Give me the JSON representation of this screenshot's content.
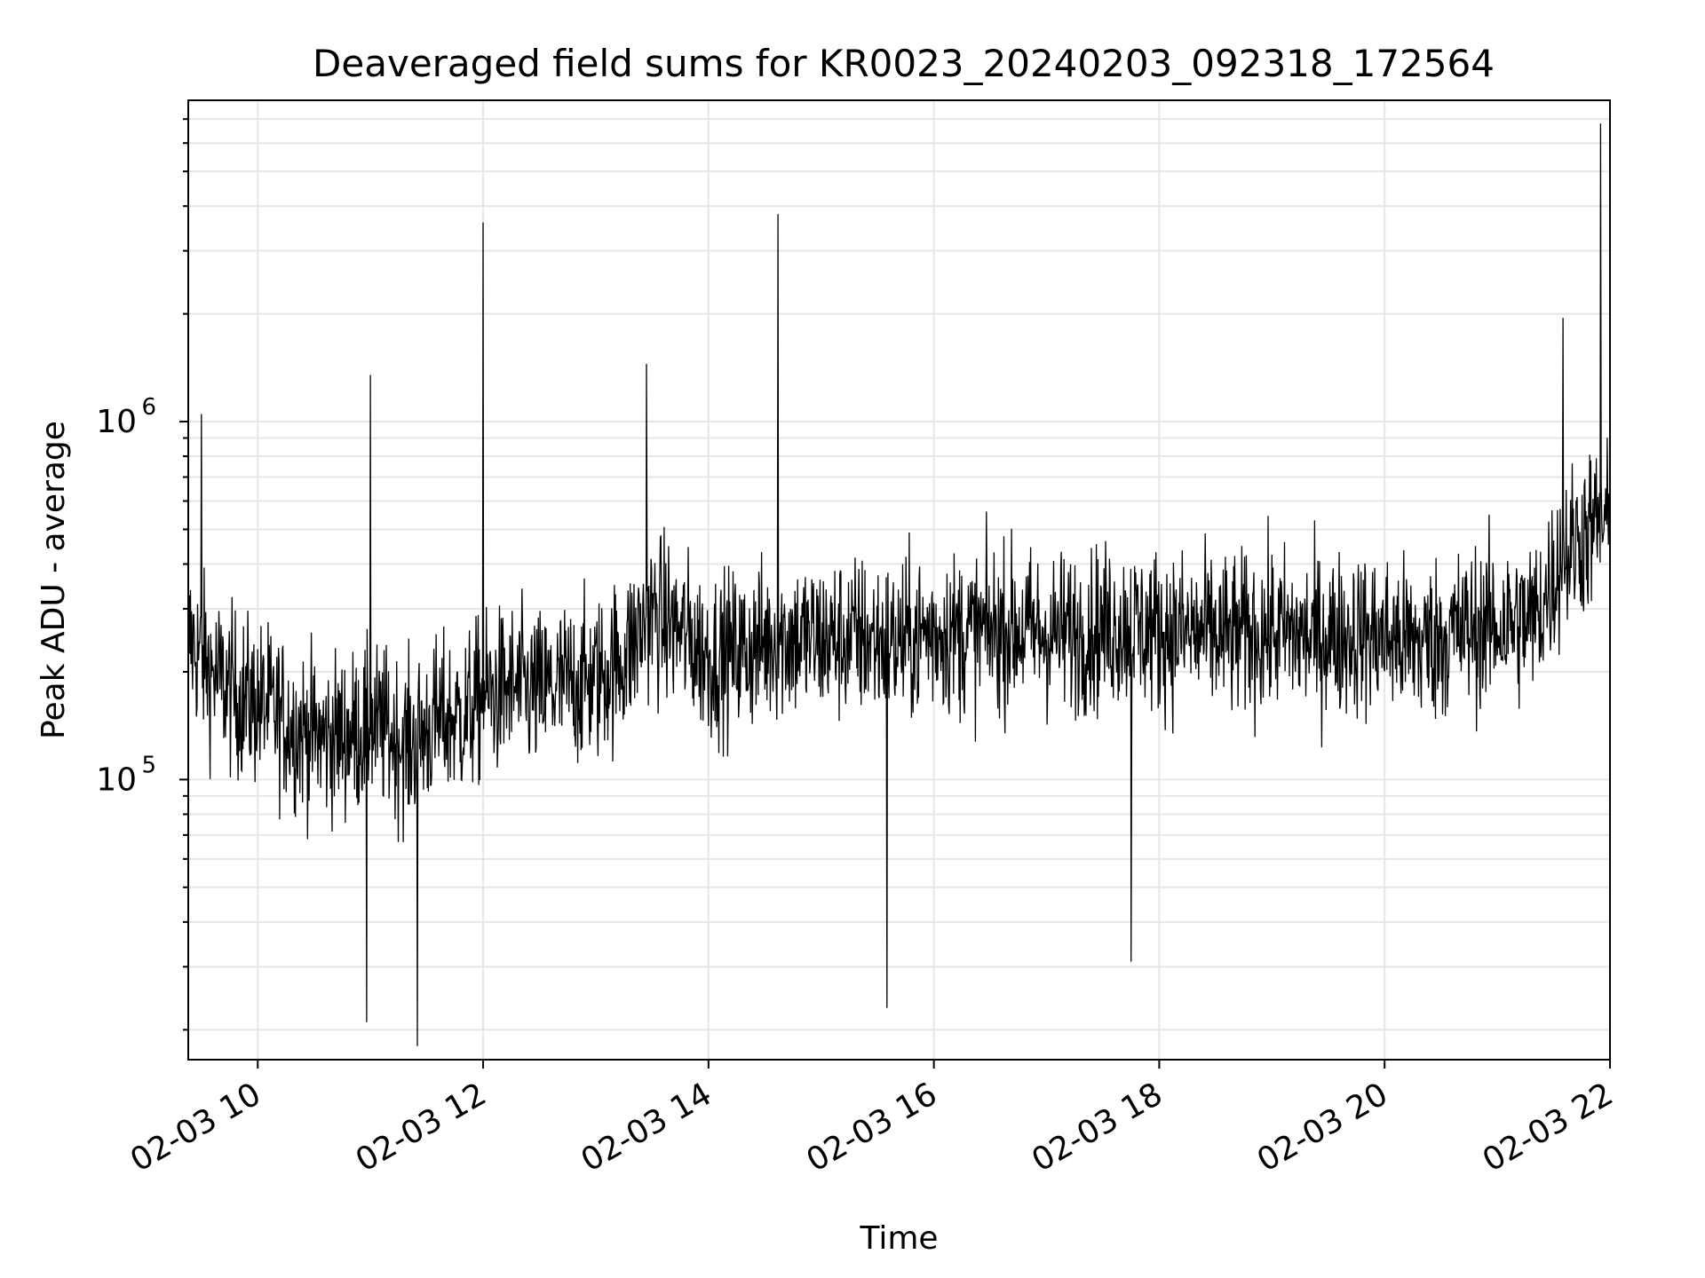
{
  "chart_data": {
    "type": "line",
    "title": "Deaveraged field sums for KR0023_20240203_092318_172564",
    "xlabel": "Time",
    "ylabel": "Peak ADU - average",
    "y_scale": "log",
    "grid": true,
    "x_ticks": [
      {
        "value": "2024-02-03 10:00",
        "label": "02-03 10"
      },
      {
        "value": "2024-02-03 12:00",
        "label": "02-03 12"
      },
      {
        "value": "2024-02-03 14:00",
        "label": "02-03 14"
      },
      {
        "value": "2024-02-03 16:00",
        "label": "02-03 16"
      },
      {
        "value": "2024-02-03 18:00",
        "label": "02-03 18"
      },
      {
        "value": "2024-02-03 20:00",
        "label": "02-03 20"
      },
      {
        "value": "2024-02-03 22:00",
        "label": "02-03 22"
      }
    ],
    "y_ticks": [
      {
        "value": 100000,
        "label": "10",
        "exponent": "5"
      },
      {
        "value": 1000000,
        "label": "10",
        "exponent": "6"
      }
    ],
    "xlim": [
      "2024-02-03 09:23",
      "2024-02-03 22:00"
    ],
    "ylim": [
      16500,
      7900000
    ],
    "line_color": "#000000",
    "grid_color": "#e6e6e6",
    "series": [
      {
        "x": [
          "2024-02-03 09:23",
          "2024-02-03 09:35",
          "2024-02-03 09:50",
          "2024-02-03 10:05",
          "2024-02-03 10:20",
          "2024-02-03 10:35",
          "2024-02-03 10:50",
          "2024-02-03 11:05",
          "2024-02-03 11:20",
          "2024-02-03 11:35",
          "2024-02-03 11:50",
          "2024-02-03 12:00",
          "2024-02-03 12:15",
          "2024-02-03 12:30",
          "2024-02-03 12:45",
          "2024-02-03 13:00",
          "2024-02-03 13:15",
          "2024-02-03 13:30",
          "2024-02-03 13:45",
          "2024-02-03 14:00",
          "2024-02-03 14:20",
          "2024-02-03 14:37",
          "2024-02-03 15:00",
          "2024-02-03 15:20",
          "2024-02-03 15:40",
          "2024-02-03 16:00",
          "2024-02-03 16:20",
          "2024-02-03 16:40",
          "2024-02-03 17:00",
          "2024-02-03 17:20",
          "2024-02-03 17:40",
          "2024-02-03 18:00",
          "2024-02-03 18:20",
          "2024-02-03 18:40",
          "2024-02-03 19:00",
          "2024-02-03 19:20",
          "2024-02-03 19:40",
          "2024-02-03 20:00",
          "2024-02-03 20:20",
          "2024-02-03 20:40",
          "2024-02-03 21:00",
          "2024-02-03 21:20",
          "2024-02-03 21:35",
          "2024-02-03 21:45",
          "2024-02-03 21:55",
          "2024-02-03 22:00"
        ],
        "values": [
          250000,
          200000,
          170000,
          160000,
          140000,
          130000,
          135000,
          140000,
          125000,
          145000,
          150000,
          170000,
          180000,
          175000,
          185000,
          190000,
          220000,
          290000,
          260000,
          220000,
          230000,
          250000,
          245000,
          250000,
          240000,
          260000,
          255000,
          265000,
          255000,
          260000,
          270000,
          260000,
          255000,
          250000,
          260000,
          250000,
          255000,
          250000,
          240000,
          260000,
          270000,
          280000,
          420000,
          480000,
          520000,
          500000
        ]
      }
    ]
  }
}
